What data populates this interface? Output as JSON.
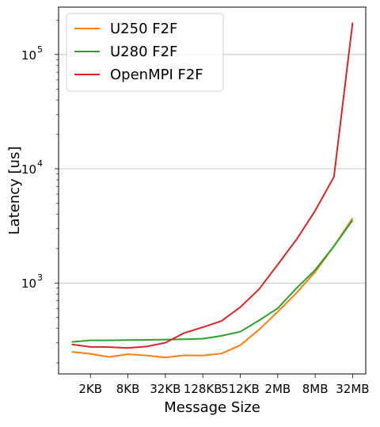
{
  "chart_data": {
    "type": "line",
    "title": "",
    "xlabel": "Message Size",
    "ylabel": "Latency [us]",
    "y_scale": "log",
    "ylim": [
      160,
      260000
    ],
    "grid": {
      "y_major": true,
      "x": false
    },
    "legend_position": "top-left",
    "x": [
      1,
      2,
      3,
      4,
      5,
      6,
      7,
      8,
      9,
      10,
      11,
      12,
      13,
      14,
      15,
      16
    ],
    "xtick_positions": [
      2,
      4,
      6,
      8,
      10,
      12,
      14,
      16
    ],
    "xtick_labels": [
      "2KB",
      "8KB",
      "32KB",
      "128KB",
      "512KB",
      "2MB",
      "8MB",
      "32MB"
    ],
    "ytick_values": [
      1000,
      10000,
      100000
    ],
    "ytick_base": "10",
    "ytick_exponents": [
      "3",
      "4",
      "5"
    ],
    "series": [
      {
        "name": "U250 F2F",
        "color": "#ff7f0e",
        "values": [
          250,
          240,
          225,
          238,
          232,
          223,
          233,
          232,
          241,
          285,
          390,
          560,
          820,
          1250,
          2100,
          3700
        ]
      },
      {
        "name": "U280 F2F",
        "color": "#2ca02c",
        "values": [
          305,
          315,
          315,
          317,
          318,
          320,
          322,
          325,
          345,
          375,
          470,
          600,
          900,
          1300,
          2100,
          3550
        ]
      },
      {
        "name": "OpenMPI F2F",
        "color": "#d62728",
        "values": [
          290,
          276,
          275,
          270,
          278,
          300,
          365,
          410,
          465,
          615,
          880,
          1450,
          2400,
          4300,
          8500,
          190000
        ]
      }
    ]
  }
}
